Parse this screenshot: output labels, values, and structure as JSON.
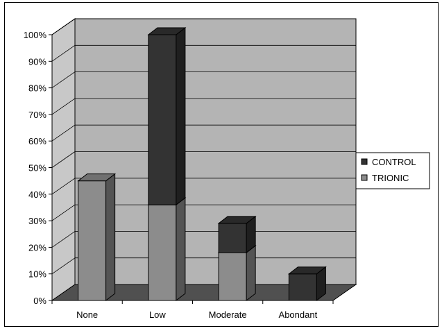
{
  "chart_data": {
    "type": "bar",
    "stacked": true,
    "three_d": true,
    "categories": [
      "None",
      "Low",
      "Moderate",
      "Abondant"
    ],
    "series": [
      {
        "name": "TRIONIC",
        "color": "#8c8c8c",
        "values": [
          45,
          36,
          18,
          0
        ]
      },
      {
        "name": "CONTROL",
        "color": "#333333",
        "values": [
          0,
          64,
          11,
          10
        ]
      }
    ],
    "yticks": [
      "0%",
      "10%",
      "20%",
      "30%",
      "40%",
      "50%",
      "60%",
      "70%",
      "80%",
      "90%",
      "100%"
    ],
    "ylim": [
      0,
      100
    ],
    "grid": true,
    "legend_position": "right",
    "legend_order": [
      "CONTROL",
      "TRIONIC"
    ],
    "colors": {
      "wall": "#b4b4b4",
      "floor": "#505050",
      "side_wall": "#c8c8c8"
    }
  }
}
